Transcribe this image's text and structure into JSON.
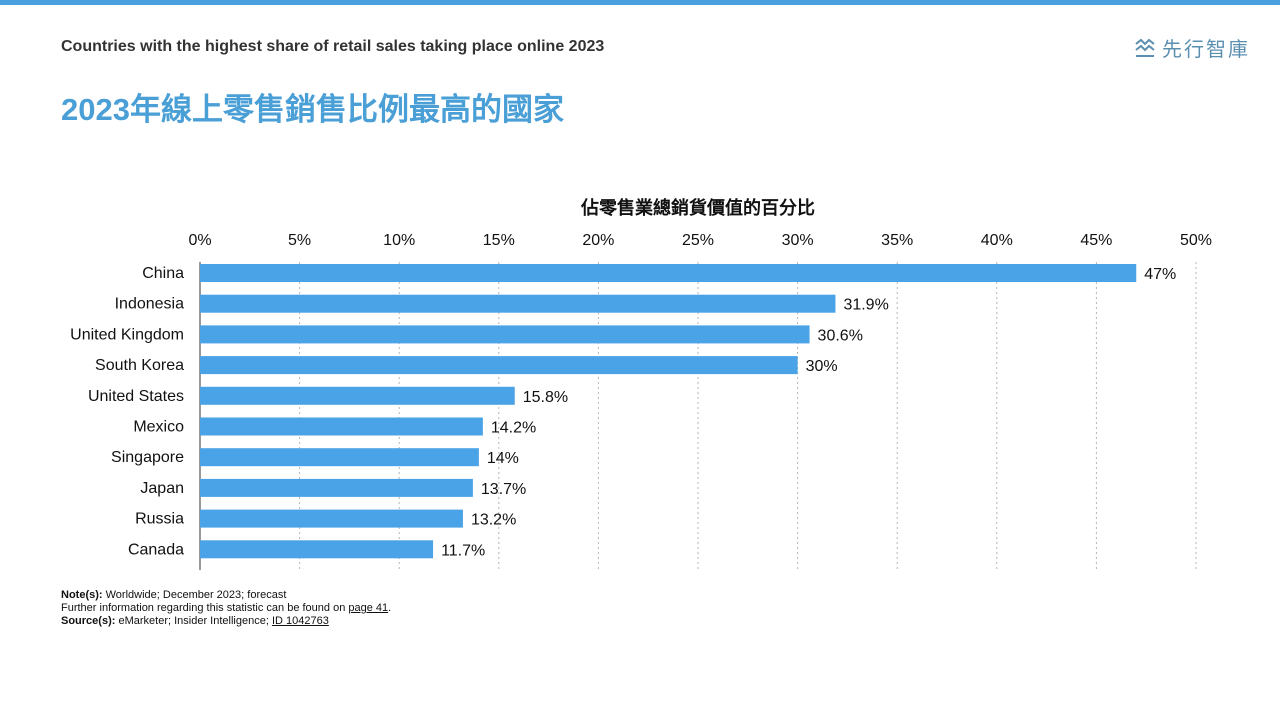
{
  "header": {
    "subtitle_en": "Countries with the highest share of retail sales taking place online 2023",
    "title_zh": "2023年線上零售銷售比例最高的國家",
    "logo_text": "先行智庫",
    "logo_icon": "stacked-waves-icon"
  },
  "chart_data": {
    "type": "bar",
    "orientation": "horizontal",
    "title": "佔零售業總銷貨價值的百分比",
    "categories": [
      "China",
      "Indonesia",
      "United Kingdom",
      "South Korea",
      "United States",
      "Mexico",
      "Singapore",
      "Japan",
      "Russia",
      "Canada"
    ],
    "values": [
      47,
      31.9,
      30.6,
      30,
      15.8,
      14.2,
      14,
      13.7,
      13.2,
      11.7
    ],
    "value_labels": [
      "47%",
      "31.9%",
      "30.6%",
      "30%",
      "15.8%",
      "14.2%",
      "14%",
      "13.7%",
      "13.2%",
      "11.7%"
    ],
    "xlim": [
      0,
      50
    ],
    "x_ticks": [
      0,
      5,
      10,
      15,
      20,
      25,
      30,
      35,
      40,
      45,
      50
    ],
    "x_tick_labels": [
      "0%",
      "5%",
      "10%",
      "15%",
      "20%",
      "25%",
      "30%",
      "35%",
      "40%",
      "45%",
      "50%"
    ],
    "x_axis_position": "top",
    "grid": "vertical dotted",
    "bar_color": "#4aa3e6"
  },
  "footer": {
    "note_label": "Note(s):",
    "note_text": "Worldwide; December 2023; forecast",
    "info_text": "Further information regarding this statistic can be found on",
    "info_link": "page 41",
    "info_end": ".",
    "source_label": "Source(s):",
    "source_text": "eMarketer; Insider Intelligence;",
    "source_link": "ID 1042763"
  }
}
